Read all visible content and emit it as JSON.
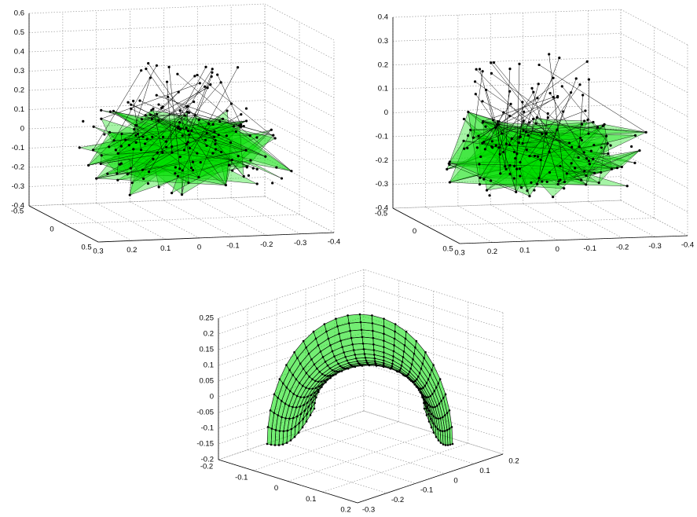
{
  "chart_data": [
    {
      "type": "mesh3d",
      "xlim": [
        -0.4,
        0.3
      ],
      "ylim": [
        -0.5,
        0.5
      ],
      "zlim": [
        -0.4,
        0.6
      ],
      "xticks": [
        -0.4,
        -0.3,
        -0.2,
        -0.1,
        0,
        0.1,
        0.2,
        0.3
      ],
      "yticks": [
        -0.5,
        0,
        0.5
      ],
      "zticks": [
        -0.4,
        -0.3,
        -0.2,
        -0.1,
        0,
        0.1,
        0.2,
        0.3,
        0.4,
        0.5,
        0.6
      ],
      "grid": true,
      "color": "#00e000"
    },
    {
      "type": "mesh3d",
      "xlim": [
        -0.4,
        0.3
      ],
      "ylim": [
        -0.5,
        0.5
      ],
      "zlim": [
        -0.4,
        0.4
      ],
      "xticks": [
        -0.4,
        -0.3,
        -0.2,
        -0.1,
        0,
        0.1,
        0.2,
        0.3
      ],
      "yticks": [
        -0.5,
        0,
        0.5
      ],
      "zticks": [
        -0.4,
        -0.3,
        -0.2,
        -0.1,
        0,
        0.1,
        0.2,
        0.3,
        0.4
      ],
      "grid": true,
      "color": "#00e000"
    },
    {
      "type": "surface3d",
      "xlim": [
        -0.2,
        0.2
      ],
      "ylim": [
        -0.3,
        0.2
      ],
      "zlim": [
        -0.2,
        0.25
      ],
      "xticks": [
        -0.2,
        -0.1,
        0,
        0.1,
        0.2
      ],
      "yticks": [
        -0.3,
        -0.2,
        -0.1,
        0,
        0.1,
        0.2
      ],
      "zticks": [
        -0.2,
        -0.15,
        -0.1,
        -0.05,
        0,
        0.05,
        0.1,
        0.15,
        0.2,
        0.25
      ],
      "grid": true,
      "color": "#00e000"
    }
  ]
}
